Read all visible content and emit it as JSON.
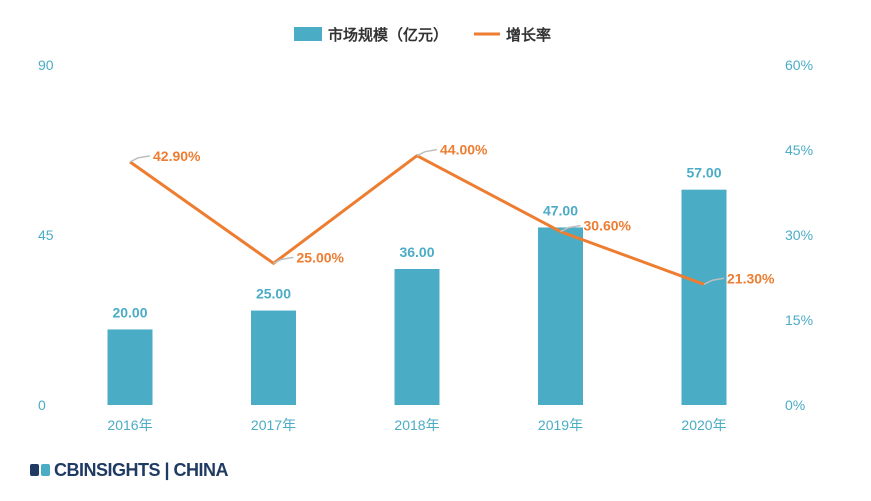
{
  "chart_data": {
    "type": "bar",
    "categories": [
      "2016年",
      "2017年",
      "2018年",
      "2019年",
      "2020年"
    ],
    "series": [
      {
        "name": "市场规模（亿元）",
        "type": "bar",
        "axis": "left",
        "values": [
          20.0,
          25.0,
          36.0,
          47.0,
          57.0
        ],
        "labels": [
          "20.00",
          "25.00",
          "36.00",
          "47.00",
          "57.00"
        ]
      },
      {
        "name": "增长率",
        "type": "line",
        "axis": "right",
        "values": [
          42.9,
          25.0,
          44.0,
          30.6,
          21.3
        ],
        "labels": [
          "42.90%",
          "25.00%",
          "44.00%",
          "30.60%",
          "21.30%"
        ]
      }
    ],
    "left_axis": {
      "ylim": [
        0,
        90
      ],
      "ticks": [
        "0",
        "45",
        "90"
      ]
    },
    "right_axis": {
      "ylim": [
        0,
        60
      ],
      "ticks": [
        "0%",
        "15%",
        "30%",
        "45%",
        "60%"
      ]
    },
    "grid": false,
    "legend_position": "top-center"
  },
  "colors": {
    "bar": "#4bacc6",
    "line": "#ed7d31",
    "axis_text": "#4bacc6",
    "leader": "#bfbfbf"
  },
  "footer": {
    "logo_text": "CBINSIGHTS | CHINA"
  }
}
